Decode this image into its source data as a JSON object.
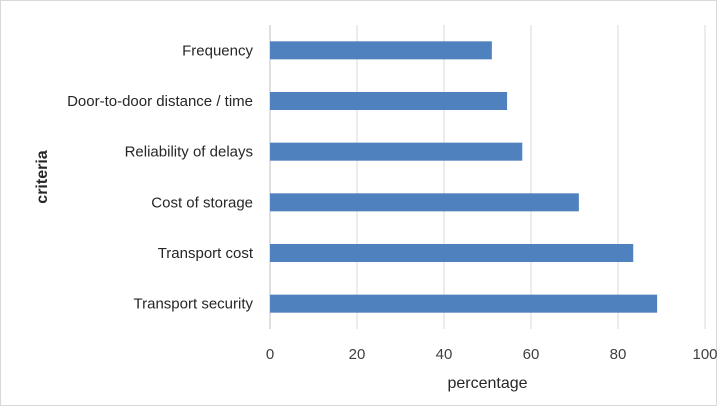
{
  "chart_data": {
    "type": "bar",
    "orientation": "horizontal",
    "categories": [
      "Frequency",
      "Door-to-door distance / time",
      "Reliability of delays",
      "Cost of storage",
      "Transport cost",
      "Transport security"
    ],
    "values": [
      51,
      54.5,
      58,
      71,
      83.5,
      89
    ],
    "title": "",
    "xlabel": "percentage",
    "ylabel": "criteria",
    "xlim": [
      0,
      100
    ],
    "xticks": [
      "0",
      "20",
      "40",
      "60",
      "80",
      "100"
    ],
    "grid": true,
    "legend": "none",
    "bar_color": "#4e81bd",
    "grid_color": "#d9d9d9"
  }
}
